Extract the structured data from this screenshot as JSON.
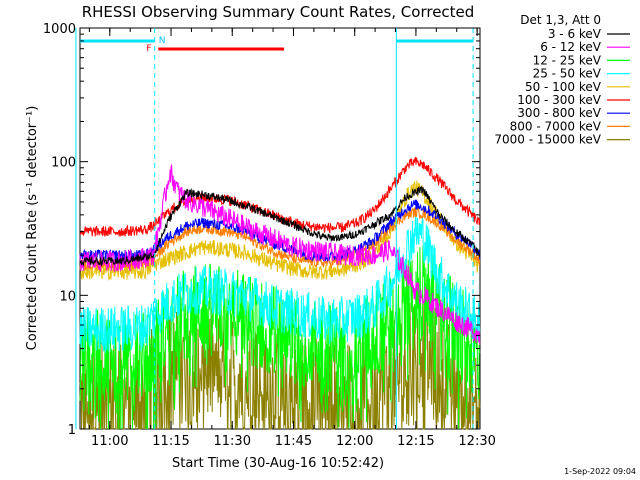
{
  "chart_data": {
    "type": "line",
    "title": "RHESSI Observing Summary Count Rates, Corrected",
    "xlabel": "Start Time (30-Aug-16 10:52:42)",
    "ylabel": "Corrected Count Rate",
    "ylabel_units": "(s⁻¹ detector⁻¹)",
    "yscale": "log",
    "ylim": [
      1,
      1000
    ],
    "xlim_minutes": [
      0,
      98
    ],
    "x_ticks": [
      {
        "label": "11:00",
        "t": 7.3
      },
      {
        "label": "11:15",
        "t": 22.3
      },
      {
        "label": "11:30",
        "t": 37.3
      },
      {
        "label": "11:45",
        "t": 52.3
      },
      {
        "label": "12:00",
        "t": 67.3
      },
      {
        "label": "12:15",
        "t": 82.3
      },
      {
        "label": "12:30",
        "t": 97.3
      }
    ],
    "y_ticks": [
      {
        "label": "1",
        "value": 1
      },
      {
        "label": "10",
        "value": 10
      },
      {
        "label": "100",
        "value": 100
      },
      {
        "label": "1000",
        "value": 1000
      }
    ],
    "legend_title": "Det 1,3, Att 0",
    "series": [
      {
        "name": "3 - 6 keV",
        "color": "#000000",
        "t": [
          0,
          10,
          15,
          18,
          22,
          26,
          30,
          36,
          42,
          48,
          52,
          56,
          60,
          64,
          68,
          72,
          76,
          80,
          84,
          88,
          92,
          96,
          98
        ],
        "values": [
          18,
          18,
          19,
          20,
          38,
          58,
          57,
          52,
          45,
          38,
          34,
          30,
          27,
          27,
          29,
          34,
          40,
          55,
          62,
          40,
          30,
          24,
          20
        ]
      },
      {
        "name": "6 - 12 keV",
        "color": "#ff00ff",
        "t": [
          0,
          10,
          15,
          18,
          20,
          22,
          24,
          26,
          30,
          36,
          42,
          48,
          52,
          56,
          60,
          64,
          68,
          72,
          76,
          80,
          82,
          84,
          88,
          92,
          96,
          98
        ],
        "values": [
          18,
          18,
          19,
          20,
          40,
          85,
          60,
          52,
          46,
          38,
          31,
          26,
          23,
          22,
          21,
          20,
          20,
          20,
          22,
          15,
          11,
          10,
          8,
          6.5,
          5.5,
          5
        ],
        "noise": 0.08
      },
      {
        "name": "12 - 25 keV",
        "color": "#00ff00",
        "t": [
          0,
          10,
          16,
          18,
          22,
          26,
          30,
          36,
          40,
          44,
          48,
          52,
          56,
          60,
          64,
          68,
          72,
          76,
          80,
          82,
          84,
          88,
          92,
          96,
          98
        ],
        "values": [
          3.5,
          3.5,
          3.6,
          4,
          6,
          7.5,
          8,
          7.5,
          7,
          6,
          5.5,
          5,
          4.5,
          4.2,
          4,
          4.2,
          5,
          6.5,
          9,
          11,
          11,
          8,
          6,
          4,
          3.5
        ],
        "noise": 0.35,
        "floor": 1.6
      },
      {
        "name": "25 - 50 keV",
        "color": "#00ffff",
        "t": [
          0,
          10,
          16,
          18,
          22,
          26,
          30,
          36,
          40,
          44,
          48,
          52,
          56,
          60,
          64,
          68,
          72,
          76,
          80,
          82,
          84,
          88,
          92,
          96,
          98
        ],
        "values": [
          5.5,
          5.6,
          5.8,
          7,
          9,
          10.5,
          11,
          10.5,
          10,
          9,
          8,
          7.5,
          7,
          6.5,
          6.5,
          7,
          8,
          12,
          22,
          30,
          28,
          14,
          9,
          7,
          6
        ],
        "noise": 0.18
      },
      {
        "name": "50 - 100 keV",
        "color": "#e5c000",
        "t": [
          0,
          10,
          16,
          18,
          22,
          26,
          30,
          36,
          40,
          44,
          48,
          52,
          56,
          60,
          64,
          68,
          72,
          76,
          80,
          82,
          84,
          88,
          92,
          96,
          98
        ],
        "values": [
          15,
          15,
          15,
          17,
          19,
          21,
          23,
          22,
          21,
          19,
          17,
          16,
          15,
          15,
          15.5,
          17,
          20,
          30,
          55,
          65,
          58,
          38,
          25,
          19,
          16
        ],
        "noise": 0.06
      },
      {
        "name": "100 - 300 keV",
        "color": "#ff0000",
        "t": [
          0,
          10,
          16,
          18,
          22,
          26,
          30,
          36,
          40,
          44,
          48,
          52,
          56,
          60,
          64,
          68,
          72,
          76,
          80,
          82,
          84,
          88,
          92,
          96,
          98
        ],
        "values": [
          30,
          30,
          31,
          33,
          43,
          52,
          54,
          52,
          48,
          43,
          39,
          35,
          33,
          32,
          32,
          35,
          43,
          62,
          92,
          100,
          95,
          72,
          52,
          40,
          34
        ],
        "noise": 0.04
      },
      {
        "name": "300 - 800 keV",
        "color": "#0000ff",
        "t": [
          0,
          10,
          16,
          18,
          22,
          26,
          30,
          36,
          40,
          44,
          48,
          52,
          56,
          60,
          64,
          68,
          72,
          76,
          80,
          82,
          84,
          88,
          92,
          96,
          98
        ],
        "values": [
          20,
          20,
          20,
          22,
          28,
          33,
          35,
          33,
          31,
          27,
          24,
          22,
          20,
          19.5,
          20,
          22,
          26,
          35,
          45,
          48,
          46,
          38,
          29,
          24,
          20
        ],
        "noise": 0.04
      },
      {
        "name": "800 - 7000 keV",
        "color": "#ff7f00",
        "t": [
          0,
          10,
          16,
          18,
          22,
          26,
          30,
          36,
          40,
          44,
          48,
          52,
          56,
          60,
          64,
          68,
          72,
          76,
          80,
          82,
          84,
          88,
          92,
          96,
          98
        ],
        "values": [
          17,
          17,
          17.5,
          19,
          25,
          30,
          32,
          30,
          28,
          24,
          21,
          19,
          18,
          17.5,
          18,
          20,
          24,
          32,
          40,
          42,
          41,
          34,
          26,
          21,
          18
        ],
        "noise": 0.04
      },
      {
        "name": "7000 - 15000 keV",
        "color": "#8b8000",
        "t": [
          0,
          10,
          16,
          18,
          22,
          26,
          30,
          36,
          40,
          44,
          48,
          52,
          56,
          60,
          64,
          68,
          72,
          76,
          80,
          82,
          84,
          88,
          92,
          96,
          98
        ],
        "values": [
          1.6,
          1.6,
          1.7,
          2.2,
          2.8,
          3,
          3,
          2.8,
          2.5,
          2.2,
          2,
          1.9,
          1.8,
          1.8,
          1.8,
          1.8,
          1.9,
          2.2,
          3,
          4,
          4,
          2.8,
          2,
          1.6,
          1.3
        ],
        "noise": 0.45,
        "floor": 1.0
      }
    ],
    "annotations": {
      "night_bars": [
        {
          "label": "N",
          "from": -1,
          "to": 18.3
        },
        {
          "label": "",
          "from": 77.5,
          "to": 96.3
        }
      ],
      "flare_bar": {
        "label": "F",
        "from": 19.2,
        "to": 50
      },
      "vertical_solid": [
        -1,
        77.5
      ],
      "vertical_dashed": [
        18.3,
        96.3
      ]
    }
  },
  "footer": {
    "timestamp": "1-Sep-2022 09:04"
  }
}
